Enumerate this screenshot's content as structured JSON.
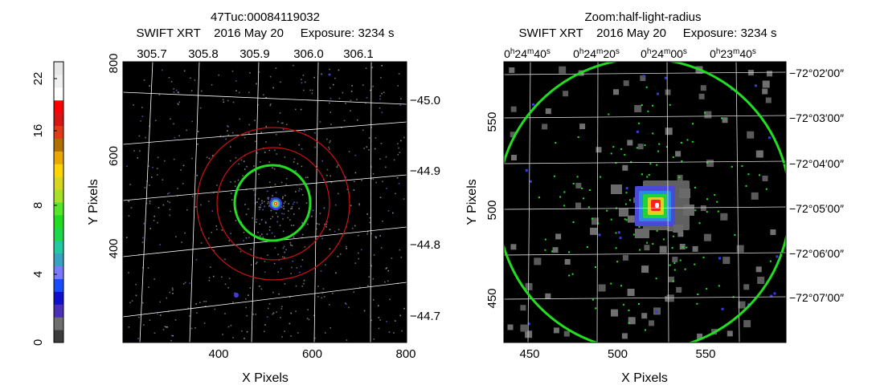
{
  "colorbar": {
    "ticks": [
      "0",
      "4",
      "8",
      "16",
      "22"
    ],
    "colors": [
      "#3c3c3c",
      "#6e6e6e",
      "#4a2fb8",
      "#1010cc",
      "#1a4cff",
      "#7a7aff",
      "#38a0c0",
      "#21c8a0",
      "#19d84a",
      "#1edc1e",
      "#55e62a",
      "#a8e028",
      "#d6d61e",
      "#ffd400",
      "#e8a800",
      "#b07000",
      "#e03a16",
      "#d81414",
      "#ff0000",
      "#ffffff",
      "#f0f0f0",
      "#e6e6e6"
    ]
  },
  "left_panel": {
    "title_line1": "47Tuc:00084119032",
    "title_line2": "SWIFT XRT    2016 May 20     Exposure: 3234 s",
    "xlabel": "X Pixels",
    "ylabel": "Y Pixels",
    "x_ticks": [
      {
        "label": "400",
        "value": 400
      },
      {
        "label": "600",
        "value": 600
      },
      {
        "label": "800",
        "value": 800
      }
    ],
    "y_ticks": [
      {
        "label": "400",
        "value": 400
      },
      {
        "label": "600",
        "value": 600
      },
      {
        "label": "800",
        "value": 800
      }
    ],
    "ra_ticks": [
      "305.7",
      "305.8",
      "305.9",
      "306.0",
      "306.1"
    ],
    "dec_ticks": [
      "−45.0",
      "−44.9",
      "−44.8",
      "−44.7"
    ]
  },
  "right_panel": {
    "title_line1": "Zoom:half-light-radius",
    "title_line2": "SWIFT XRT    2016 May 20     Exposure: 3234 s",
    "xlabel": "X Pixels",
    "ylabel": "Y Pixels",
    "x_ticks": [
      {
        "label": "450",
        "value": 450
      },
      {
        "label": "500",
        "value": 500
      },
      {
        "label": "550",
        "value": 550
      }
    ],
    "y_ticks": [
      {
        "label": "450",
        "value": 450
      },
      {
        "label": "500",
        "value": 500
      },
      {
        "label": "550",
        "value": 550
      }
    ],
    "ra_ticks": [
      {
        "h": "0",
        "m": "24",
        "s": "40"
      },
      {
        "h": "0",
        "m": "24",
        "s": "20"
      },
      {
        "h": "0",
        "m": "24",
        "s": "00"
      },
      {
        "h": "0",
        "m": "23",
        "s": "40"
      }
    ],
    "dec_ticks": [
      "−72°02′00″",
      "−72°03′00″",
      "−72°04′00″",
      "−72°05′00″",
      "−72°06′00″",
      "−72°07′00″"
    ]
  },
  "colors": {
    "background": "#000000",
    "grid": "#ffffff",
    "circle_green": "#22dd22",
    "circle_red": "#cc1111"
  }
}
